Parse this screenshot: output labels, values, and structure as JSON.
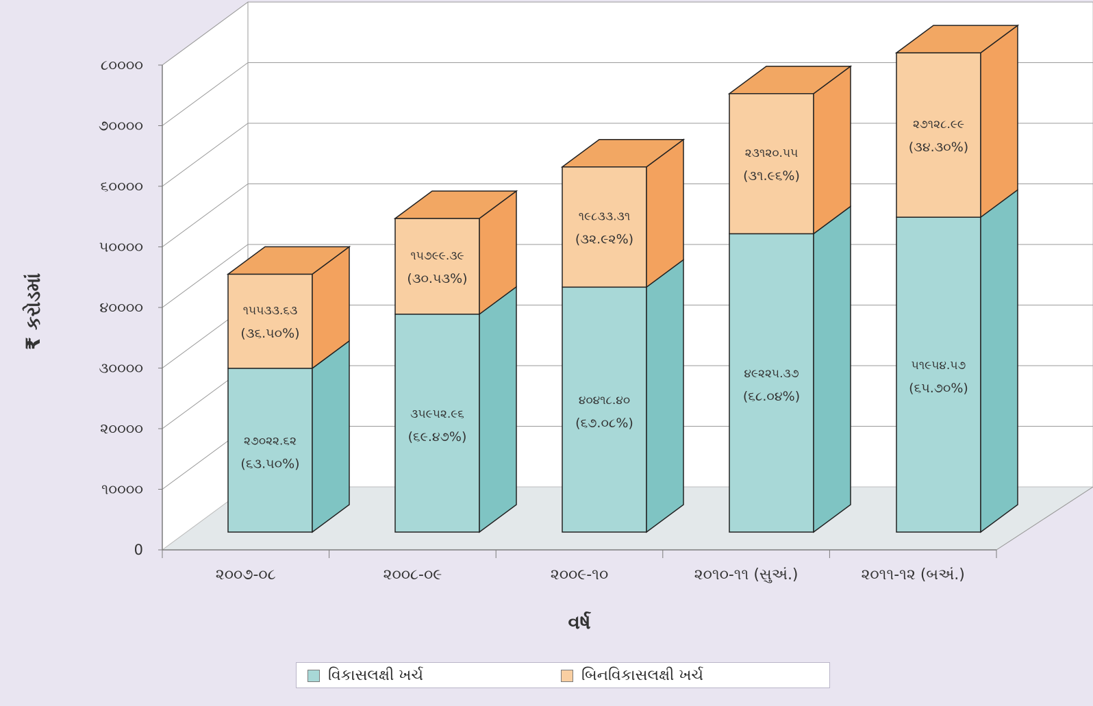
{
  "chart_data": {
    "type": "bar",
    "stacked": true,
    "three_d": true,
    "title": "",
    "xlabel": "વર્ષ",
    "ylabel": "₹ કરોડમાં",
    "ylim": [
      0,
      80000
    ],
    "yticks": [
      "0",
      "૧૦૦૦૦",
      "૨૦૦૦૦",
      "૩૦૦૦૦",
      "૪૦૦૦૦",
      "૫૦૦૦૦",
      "૬૦૦૦૦",
      "૭૦૦૦૦",
      "૮૦૦૦૦"
    ],
    "categories": [
      "૨૦૦૭-૦૮",
      "૨૦૦૮-૦૯",
      "૨૦૦૯-૧૦",
      "૨૦૧૦-૧૧ (સુઅં.)",
      "૨૦૧૧-૧૨ (બઅં.)"
    ],
    "series": [
      {
        "name": "વિકાસલક્ષી ખર્ચ",
        "color": "#a8d8d7",
        "side_color": "#7fc4c3",
        "values": [
          27022.62,
          35952.96,
          40418.4,
          49225.37,
          51954.57
        ],
        "labels": [
          "૨૭૦૨૨.૬૨",
          "૩૫૯૫૨.૯૬",
          "૪૦૪૧૮.૪૦",
          "૪૯૨૨૫.૩૭",
          "૫૧૯૫૪.૫૭"
        ],
        "pct_labels": [
          "(૬૩.૫૦%)",
          "(૬૯.૪૭%)",
          "(૬૭.૦૮%)",
          "(૬૮.૦૪%)",
          "(૬૫.૭૦%)"
        ]
      },
      {
        "name": "બિનવિકાસલક્ષી ખર્ચ",
        "color": "#f9cfa2",
        "side_color": "#f3a25e",
        "top_color": "#f2a763",
        "values": [
          15533.63,
          15799.39,
          19833.31,
          23120.55,
          27128.99
        ],
        "labels": [
          "૧૫૫૩૩.૬૩",
          "૧૫૭૯૯.૩૯",
          "૧૯૮૩૩.૩૧",
          "૨૩૧૨૦.૫૫",
          "૨૭૧૨૮.૯૯"
        ],
        "pct_labels": [
          "(૩૬.૫૦%)",
          "(૩૦.૫૩%)",
          "(૩૨.૯૨%)",
          "(૩૧.૯૬%)",
          "(૩૪.૩૦%)"
        ]
      }
    ],
    "legend_position": "bottom",
    "grid": true
  }
}
